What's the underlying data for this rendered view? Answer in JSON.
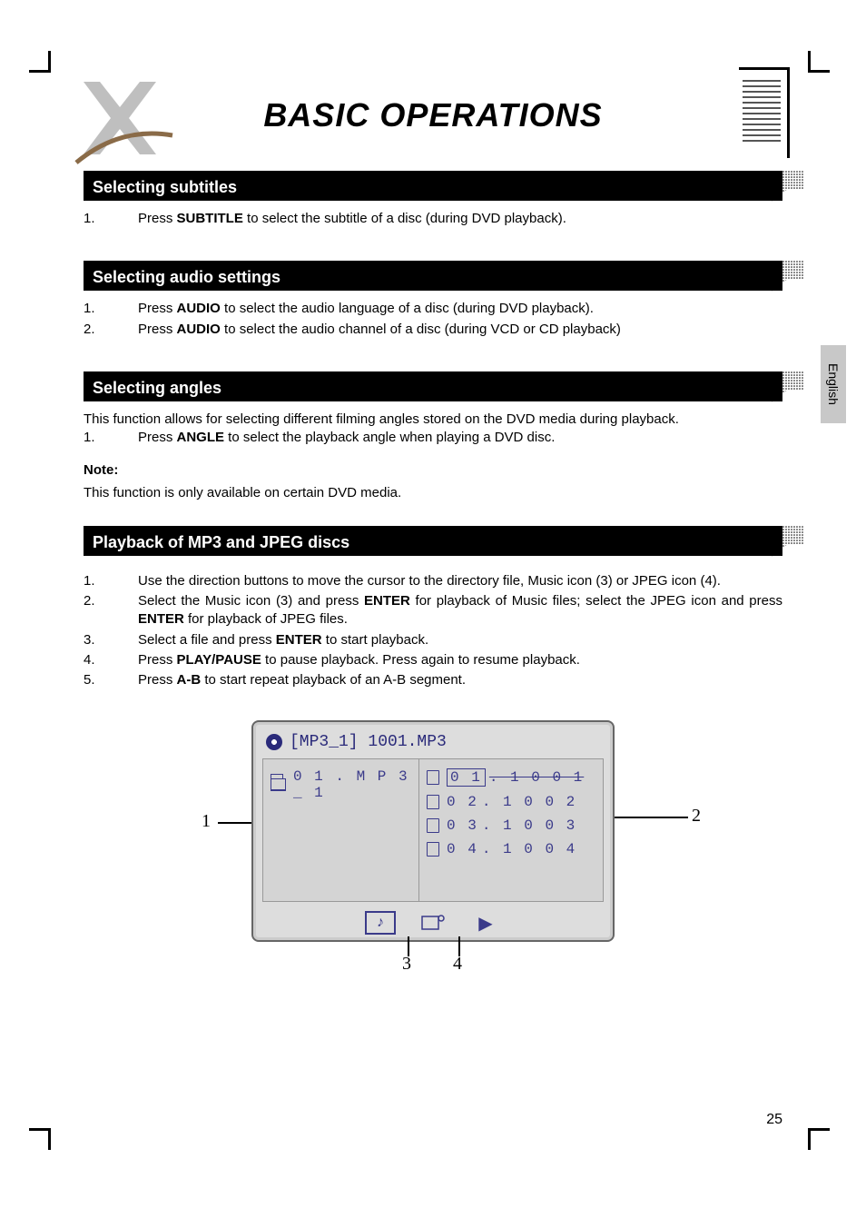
{
  "header": {
    "title": "BASIC OPERATIONS"
  },
  "side_tab": "English",
  "page_number": "25",
  "sections": {
    "subtitles": {
      "heading": "Selecting subtitles",
      "items": [
        {
          "num": "1.",
          "text_pre": "Press ",
          "bold": "SUBTITLE",
          "text_post": " to select the subtitle of a disc (during DVD playback)."
        }
      ]
    },
    "audio": {
      "heading": "Selecting audio settings",
      "items": [
        {
          "num": "1.",
          "text_pre": "Press ",
          "bold": "AUDIO",
          "text_post": " to select the audio language of a disc (during DVD playback)."
        },
        {
          "num": "2.",
          "text_pre": "Press ",
          "bold": "AUDIO",
          "text_post": " to select the audio channel of a disc (during VCD or CD playback)"
        }
      ]
    },
    "angles": {
      "heading": "Selecting angles",
      "intro": "This function allows for selecting different filming angles stored on the DVD media during playback.",
      "items": [
        {
          "num": "1.",
          "text_pre": "Press ",
          "bold": "ANGLE",
          "text_post": " to select the playback angle when playing a DVD disc."
        }
      ],
      "note_label": "Note:",
      "note_text": "This function is only available on certain DVD media."
    },
    "mp3": {
      "heading": "Playback of MP3 and JPEG discs",
      "items": [
        {
          "num": "1.",
          "html": "Use the direction buttons </∧/∨/> to move the cursor to the directory file, Music icon (3) or JPEG icon (4)."
        },
        {
          "num": "2.",
          "html": "Select the Music icon (3) and press <b>ENTER</b> for playback of Music files; select the JPEG icon and press <b>ENTER</b> for playback of JPEG files."
        },
        {
          "num": "3.",
          "html": "Select a file and press <b>ENTER</b> to start playback."
        },
        {
          "num": "4.",
          "html": "Press <b>PLAY/PAUSE</b> to pause playback. Press again to resume playback."
        },
        {
          "num": "5.",
          "html": "Press <b>A-B</b> to start repeat playback of an A-B segment."
        }
      ]
    }
  },
  "diagram": {
    "header": "[MP3_1] 1001.MP3",
    "left_folder": "0 1 . M P 3 _ 1",
    "tracks": [
      {
        "num": "0 1",
        "rest": ". 1 0 0 1",
        "selected": true
      },
      {
        "num": "0 2",
        "rest": ". 1 0 0 2",
        "selected": false
      },
      {
        "num": "0 3",
        "rest": ". 1 0 0 3",
        "selected": false
      },
      {
        "num": "0 4",
        "rest": ". 1 0 0 4",
        "selected": false
      }
    ],
    "callouts": {
      "c1": "1",
      "c2": "2",
      "c3": "3",
      "c4": "4"
    }
  }
}
